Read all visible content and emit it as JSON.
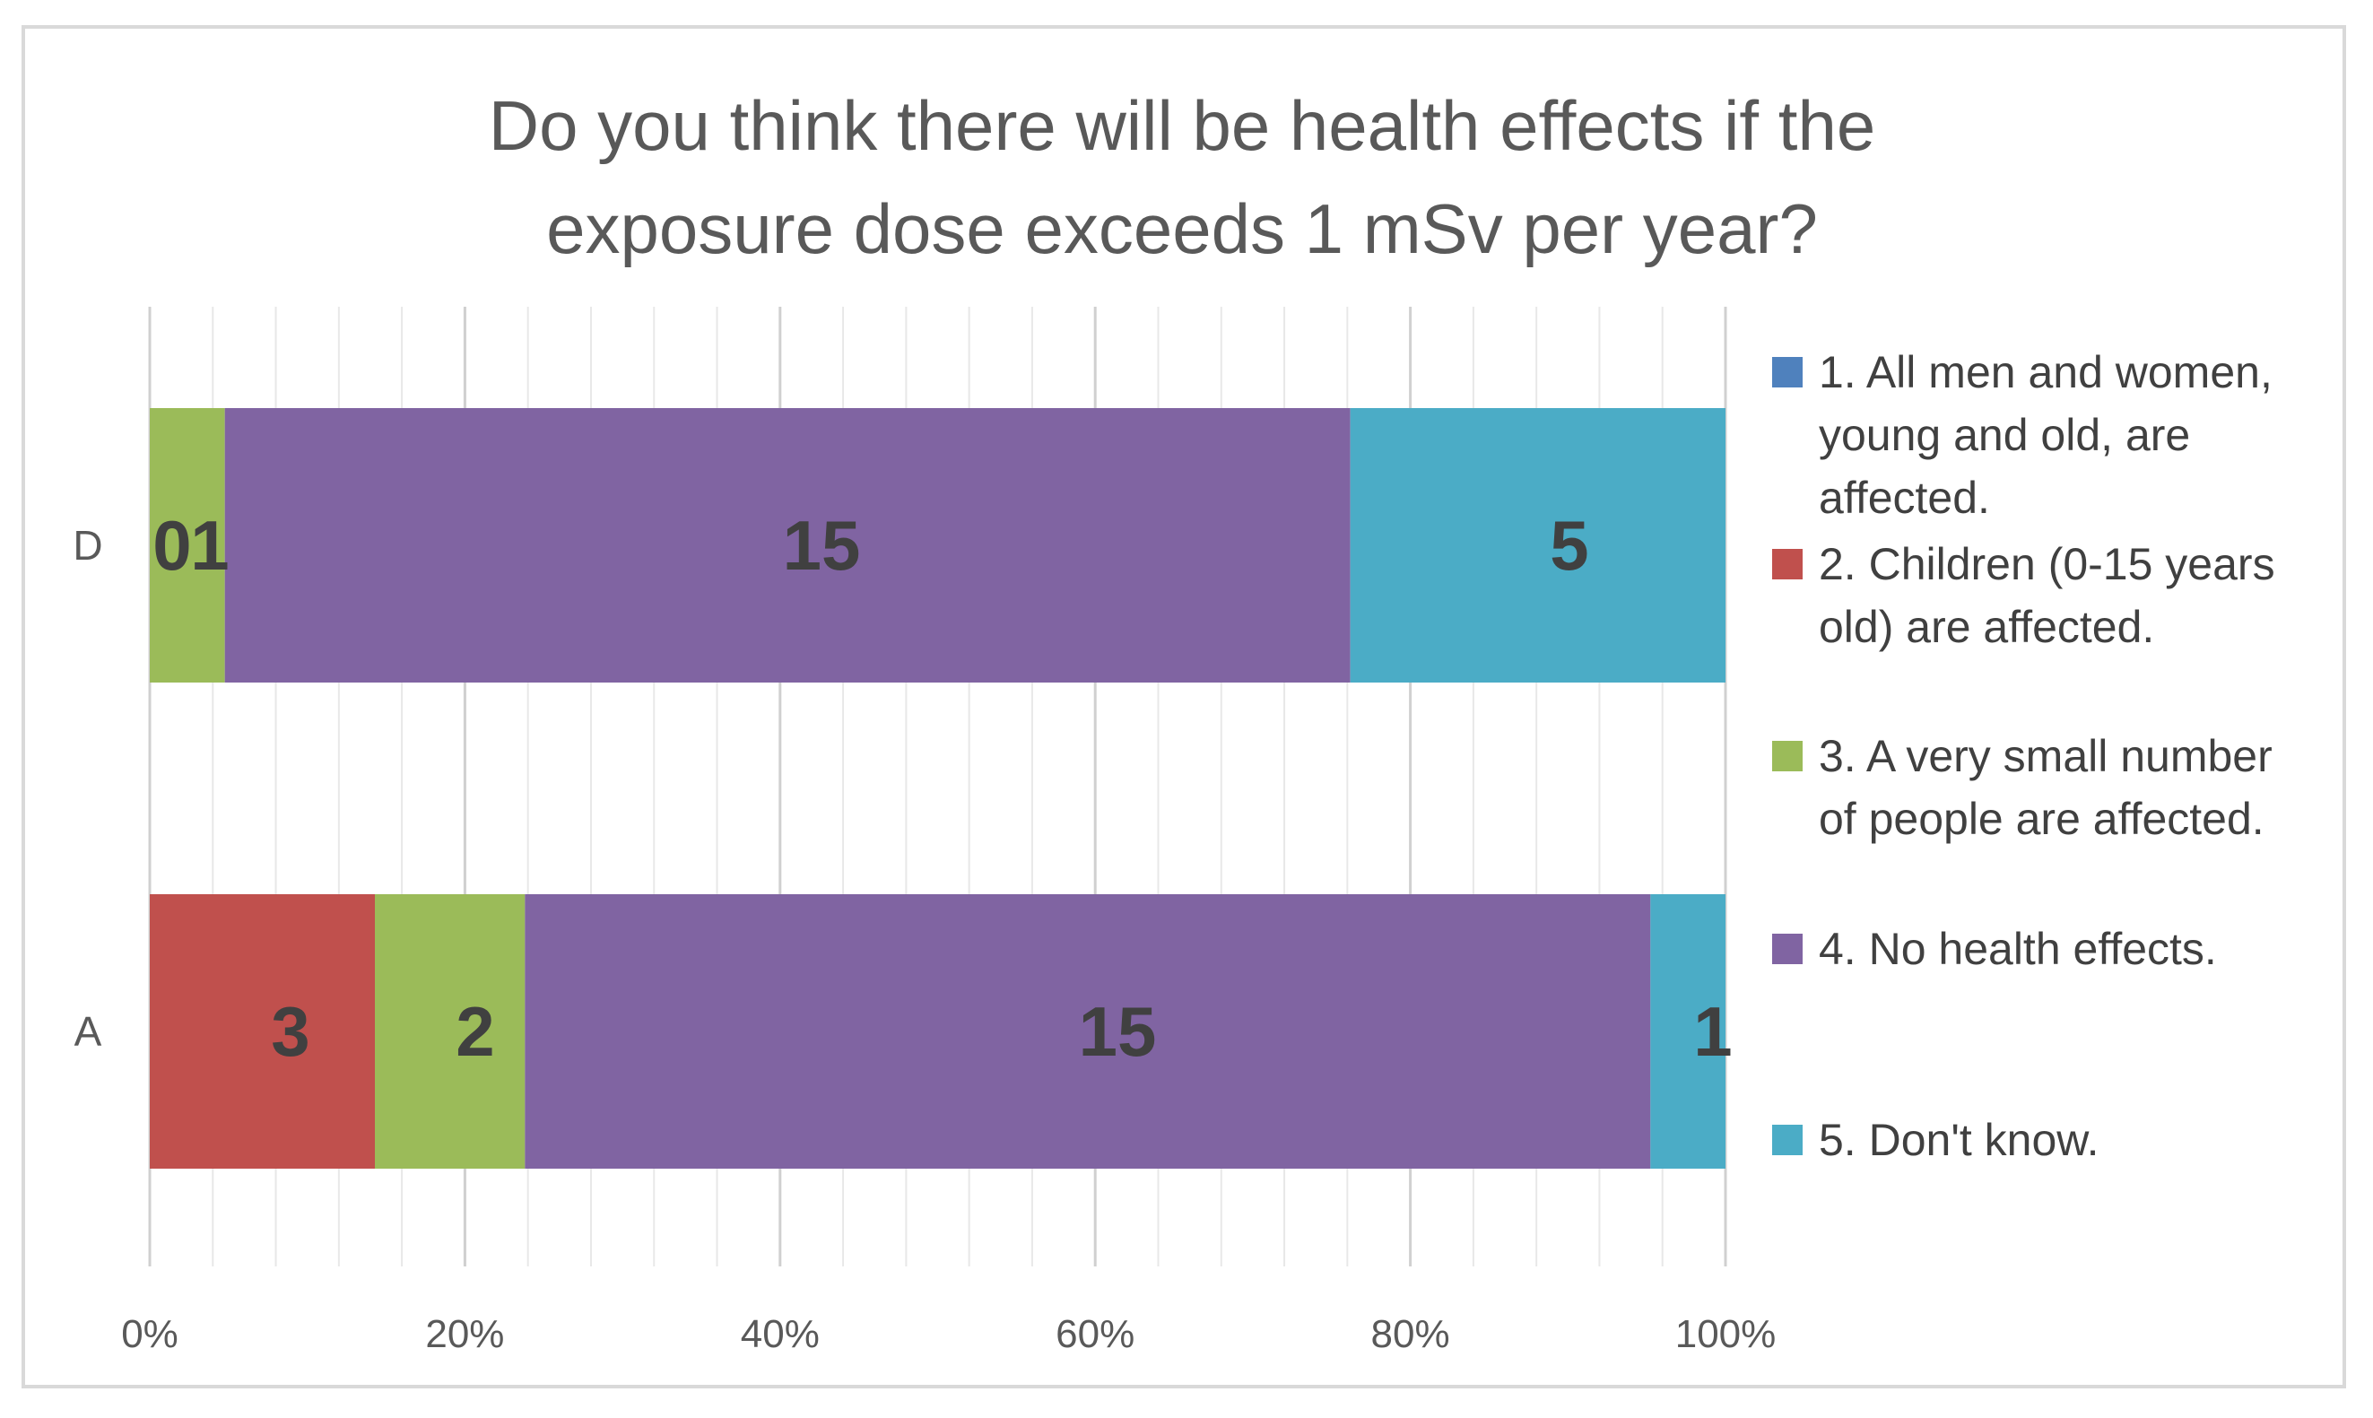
{
  "chart_data": {
    "type": "bar",
    "orientation": "horizontal",
    "stacked": "percent",
    "title": "Do you think there will be health effects if the exposure dose exceeds 1 mSv per year?",
    "title_lines": [
      "Do you think there will be health effects if the",
      "exposure dose exceeds 1 mSv per year?"
    ],
    "categories": [
      "D",
      "A"
    ],
    "xlim": [
      0,
      100
    ],
    "x_ticks": [
      "0%",
      "20%",
      "40%",
      "60%",
      "80%",
      "100%"
    ],
    "grid": true,
    "legend_position": "right",
    "series": [
      {
        "name": "1. All men and women, young and old, are affected.",
        "legend_lines": [
          "1. All men and women,",
          "young and old, are",
          "affected."
        ],
        "color": "#4f81bd",
        "values": [
          0,
          0
        ]
      },
      {
        "name": "2. Children (0-15 years old) are affected.",
        "legend_lines": [
          "2. Children (0-15 years",
          "old) are affected."
        ],
        "color": "#c0504d",
        "values": [
          0,
          3
        ]
      },
      {
        "name": "3. A very small number of people are affected.",
        "legend_lines": [
          "3. A very small number",
          "of people are affected."
        ],
        "color": "#9bbb59",
        "values": [
          1,
          2
        ]
      },
      {
        "name": "4. No health effects.",
        "legend_lines": [
          "4. No health effects."
        ],
        "color": "#8064a2",
        "values": [
          15,
          15
        ]
      },
      {
        "name": "5. Don't know.",
        "legend_lines": [
          "5. Don't know."
        ],
        "color": "#4bacc6",
        "values": [
          5,
          1
        ]
      }
    ],
    "data_labels": [
      [
        "0",
        "1",
        "15",
        "5"
      ],
      [
        "3",
        "2",
        "15",
        "1"
      ]
    ]
  }
}
